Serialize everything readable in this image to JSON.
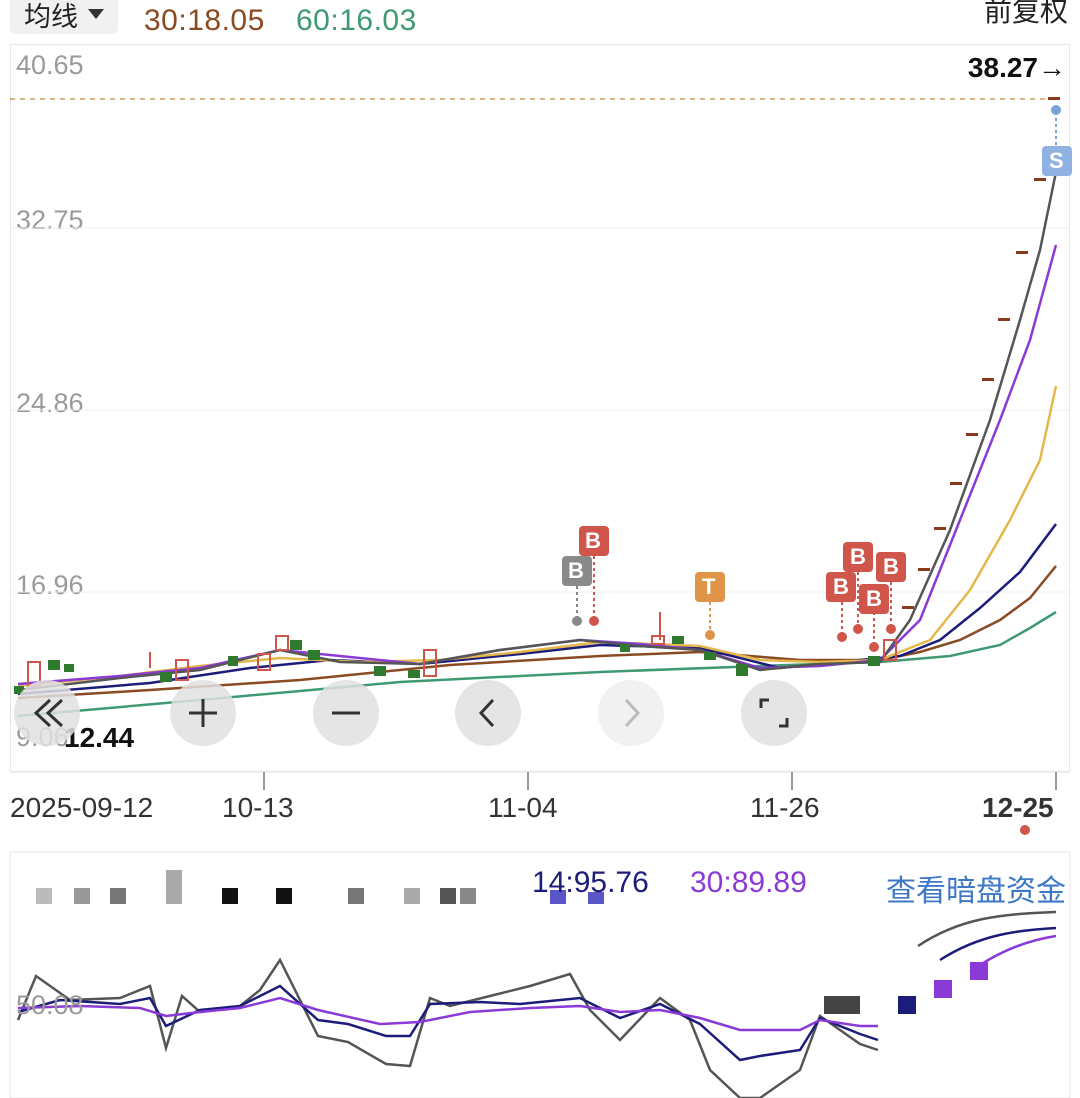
{
  "top": {
    "ma_selector_label": "均线",
    "ma30": "30:18.05",
    "ma60": "60:16.03",
    "adjust_label": "前复权"
  },
  "main_chart": {
    "y_ticks": [
      "40.65",
      "32.75",
      "24.86",
      "16.96",
      "9.06"
    ],
    "last_price": "38.27→",
    "low_marker": "12.44",
    "signals": {
      "b_gray": "B",
      "b_red": "B",
      "t_orange": "T",
      "s_blue": "S"
    }
  },
  "x_axis": {
    "labels": [
      "2025-09-12",
      "10-13",
      "11-04",
      "11-26",
      "12-25"
    ]
  },
  "sub_chart": {
    "value1": "14:95.76",
    "value2": "30:89.89",
    "link_label": "查看暗盘资金",
    "y_tick": "50.08"
  },
  "colors": {
    "ma30": "#8a4a22",
    "ma60": "#3f9a73",
    "up": "#d0554a",
    "down": "#2f7a2f",
    "purple": "#8a3ad6",
    "navy": "#1c1c7a",
    "link": "#3d78c6"
  }
}
